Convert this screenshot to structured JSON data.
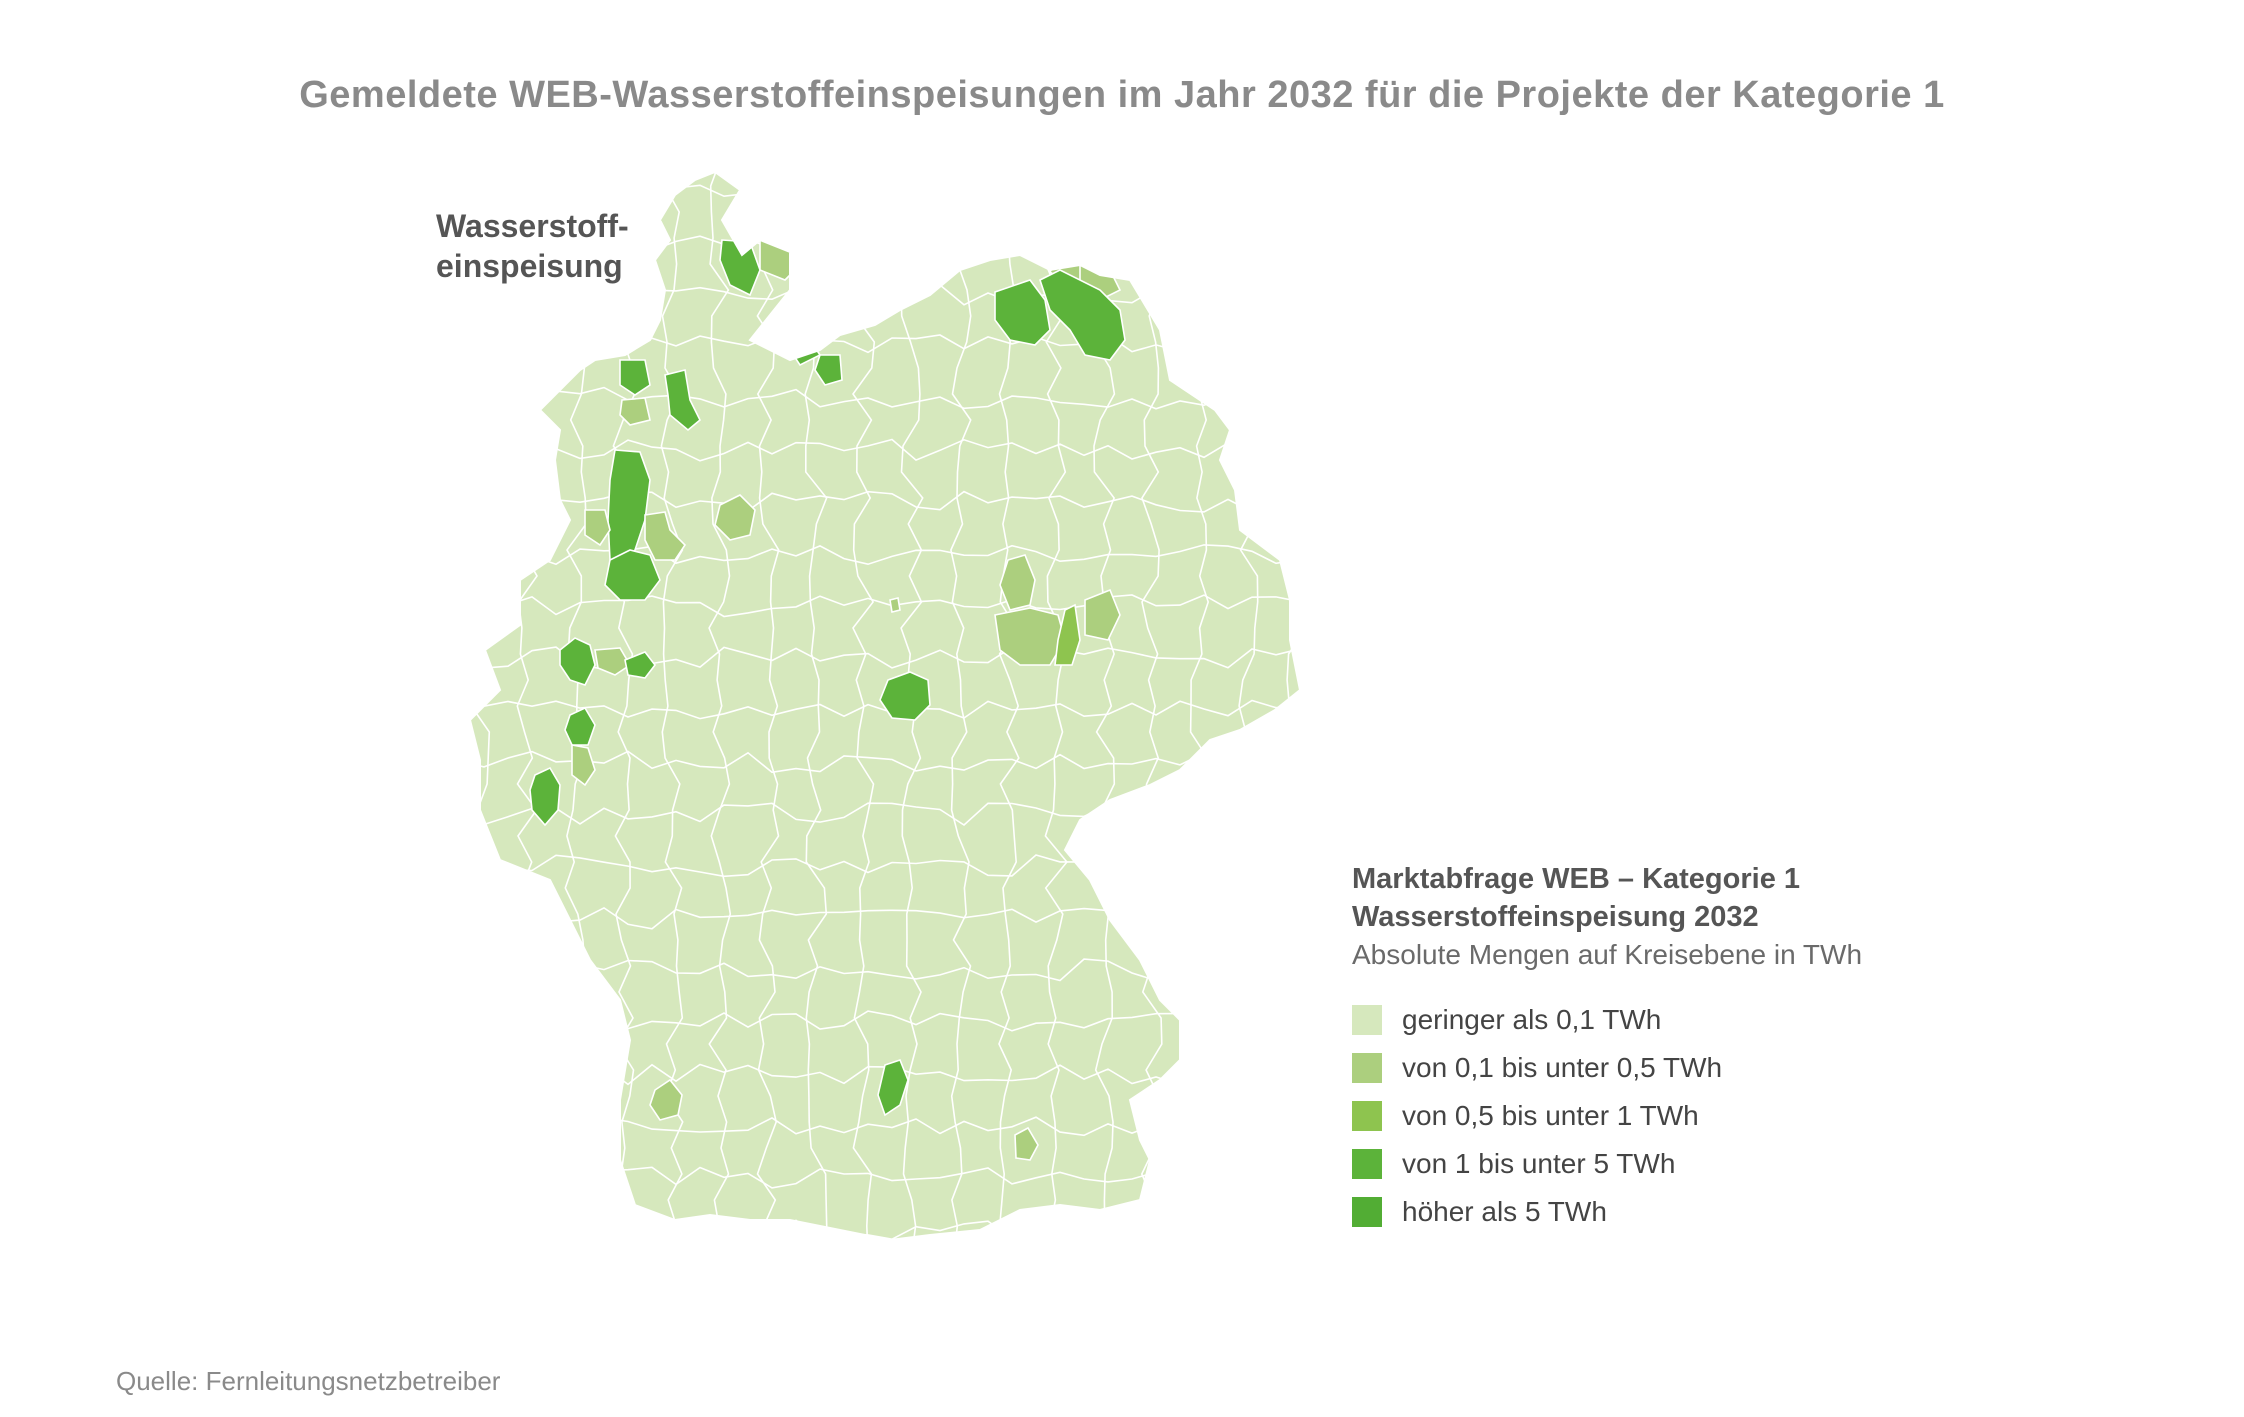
{
  "title": "Gemeldete WEB-Wasserstoffeinspeisungen im Jahr 2032 für die Projekte der Kategorie 1",
  "map_label": {
    "line1": "Wasserstoff-",
    "line2": "einspeisung"
  },
  "legend": {
    "title1": "Marktabfrage WEB – Kategorie 1",
    "title2": "Wasserstoffeinspeisung 2032",
    "subtitle": "Absolute Mengen auf Kreisebene in TWh",
    "items": [
      {
        "label": "geringer als 0,1 TWh",
        "color": "#d6e8bd"
      },
      {
        "label": "von 0,1 bis unter 0,5 TWh",
        "color": "#accf7e"
      },
      {
        "label": "von 0,5 bis unter 1 TWh",
        "color": "#8ec44f"
      },
      {
        "label": "von 1 bis unter 5 TWh",
        "color": "#5cb33a"
      },
      {
        "label": "höher als 5 TWh",
        "color": "#52ad34"
      }
    ]
  },
  "source": "Quelle: Fernleitungsnetzbetreiber",
  "colors": {
    "base": "#d6e8bd",
    "border": "#ffffff",
    "title": "#8a8a8a"
  }
}
